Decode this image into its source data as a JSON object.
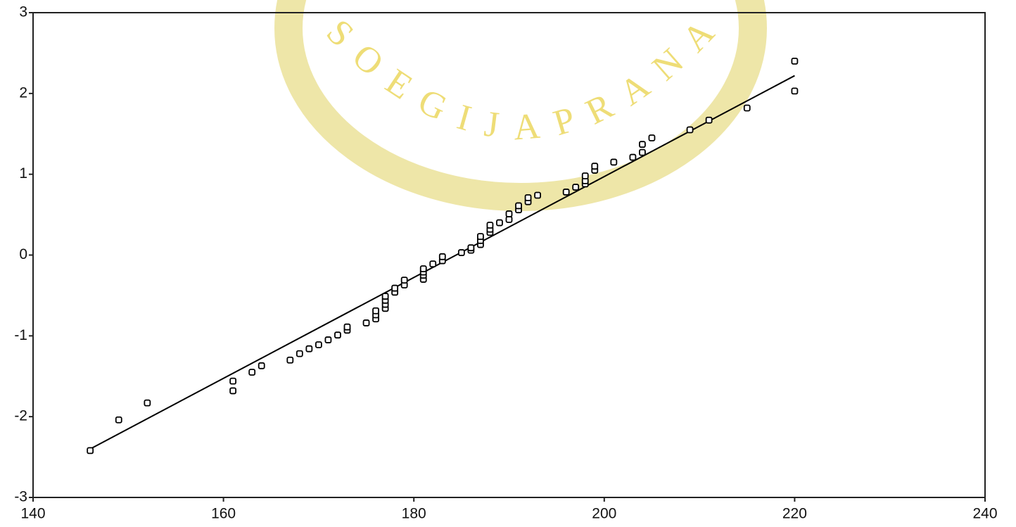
{
  "chart_data": {
    "type": "scatter",
    "watermark": "SOEGIJAPRANATA",
    "x": [
      146,
      149,
      152,
      161,
      161,
      163,
      164,
      167,
      168,
      169,
      170,
      171,
      172,
      173,
      173,
      175,
      176,
      176,
      176,
      177,
      177,
      177,
      177,
      178,
      178,
      179,
      179,
      181,
      181,
      181,
      181,
      182,
      183,
      183,
      185,
      186,
      186,
      187,
      187,
      187,
      188,
      188,
      188,
      189,
      190,
      190,
      191,
      191,
      192,
      192,
      193,
      196,
      197,
      198,
      198,
      198,
      199,
      199,
      201,
      203,
      204,
      204,
      205,
      209,
      211,
      215,
      220,
      220
    ],
    "values": [
      -2.42,
      -2.04,
      -1.83,
      -1.56,
      -1.68,
      -1.45,
      -1.37,
      -1.3,
      -1.22,
      -1.16,
      -1.11,
      -1.05,
      -0.99,
      -0.93,
      -0.89,
      -0.84,
      -0.79,
      -0.74,
      -0.69,
      -0.66,
      -0.61,
      -0.56,
      -0.51,
      -0.46,
      -0.41,
      -0.37,
      -0.31,
      -0.3,
      -0.25,
      -0.21,
      -0.17,
      -0.11,
      -0.07,
      -0.02,
      0.03,
      0.06,
      0.09,
      0.13,
      0.18,
      0.23,
      0.28,
      0.32,
      0.37,
      0.4,
      0.44,
      0.51,
      0.56,
      0.61,
      0.66,
      0.71,
      0.74,
      0.78,
      0.84,
      0.88,
      0.92,
      0.98,
      1.05,
      1.1,
      1.15,
      1.21,
      1.27,
      1.37,
      1.45,
      1.55,
      1.67,
      1.82,
      2.03,
      2.4
    ],
    "color": "#000000",
    "fit_line": {
      "x": [
        146,
        220
      ],
      "y": [
        -2.4,
        2.22
      ]
    },
    "xlim": [
      140,
      240
    ],
    "xticks": [
      140,
      160,
      180,
      200,
      220,
      240
    ],
    "ylim": [
      -3,
      3
    ],
    "yticks": [
      -3,
      -2,
      -1,
      0,
      1,
      2,
      3
    ]
  }
}
